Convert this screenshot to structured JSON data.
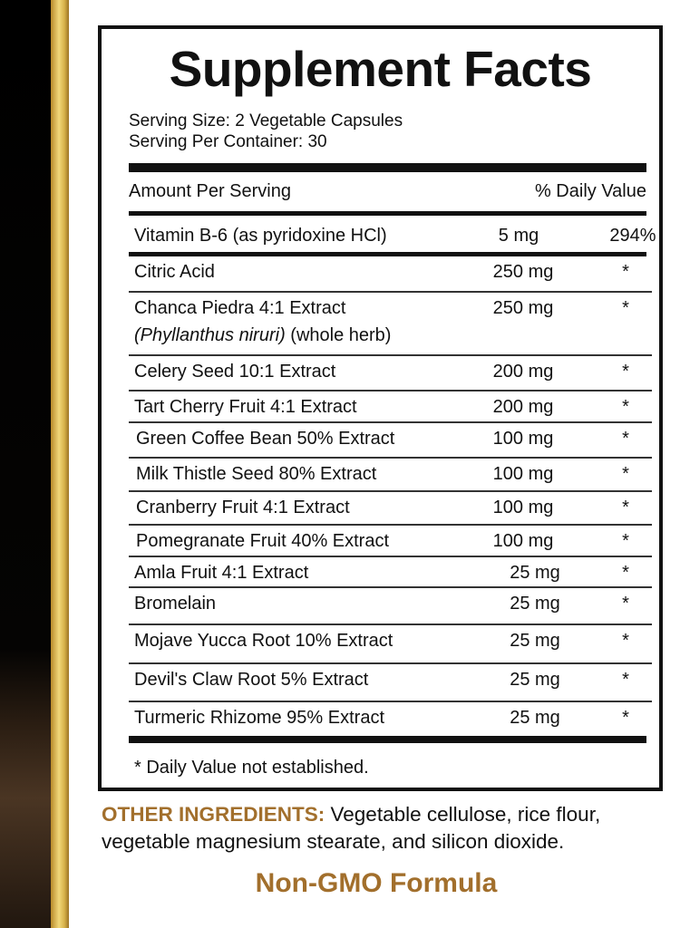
{
  "title": "Supplement Facts",
  "serving_size": "Serving Size: 2 Vegetable Capsules",
  "servings_per_container": "Serving Per Container: 30",
  "header": {
    "amount": "Amount Per Serving",
    "dv": "% Daily Value"
  },
  "rows": [
    {
      "name": "Vitamin B-6 (as pyridoxine HCl)",
      "amount": "5 mg",
      "dv": "294%"
    },
    {
      "name": "Citric Acid",
      "amount": "250 mg",
      "dv": "*"
    },
    {
      "name": "Chanca Piedra 4:1 Extract",
      "sub_italic": "(Phyllanthus niruri)",
      "sub": " (whole herb)",
      "amount": "250 mg",
      "dv": "*"
    },
    {
      "name": "Celery Seed 10:1 Extract",
      "amount": "200 mg",
      "dv": "*"
    },
    {
      "name": "Tart Cherry Fruit 4:1 Extract",
      "amount": "200 mg",
      "dv": "*"
    },
    {
      "name": "Green Coffee Bean 50% Extract",
      "amount": "100 mg",
      "dv": "*"
    },
    {
      "name": "Milk Thistle Seed 80% Extract",
      "amount": "100 mg",
      "dv": "*"
    },
    {
      "name": "Cranberry Fruit 4:1 Extract",
      "amount": "100 mg",
      "dv": "*"
    },
    {
      "name": "Pomegranate Fruit 40% Extract",
      "amount": "100 mg",
      "dv": "*"
    },
    {
      "name": "Amla Fruit 4:1 Extract",
      "amount": "25 mg",
      "dv": "*"
    },
    {
      "name": "Bromelain",
      "amount": "25 mg",
      "dv": "*"
    },
    {
      "name": "Mojave Yucca Root 10% Extract",
      "amount": "25 mg",
      "dv": "*"
    },
    {
      "name": "Devil's Claw Root 5% Extract",
      "amount": "25 mg",
      "dv": "*"
    },
    {
      "name": "Turmeric Rhizome 95% Extract",
      "amount": "25 mg",
      "dv": "*"
    }
  ],
  "footnote": "* Daily Value not established.",
  "other_ingredients": {
    "label": "OTHER INGREDIENTS:",
    "text": " Vegetable cellulose, rice flour, vegetable magnesium stearate, and silicon dioxide."
  },
  "badge": "Non-GMO Formula",
  "colors": {
    "accent": "#a26f2c",
    "gold": "#d8b24a"
  }
}
